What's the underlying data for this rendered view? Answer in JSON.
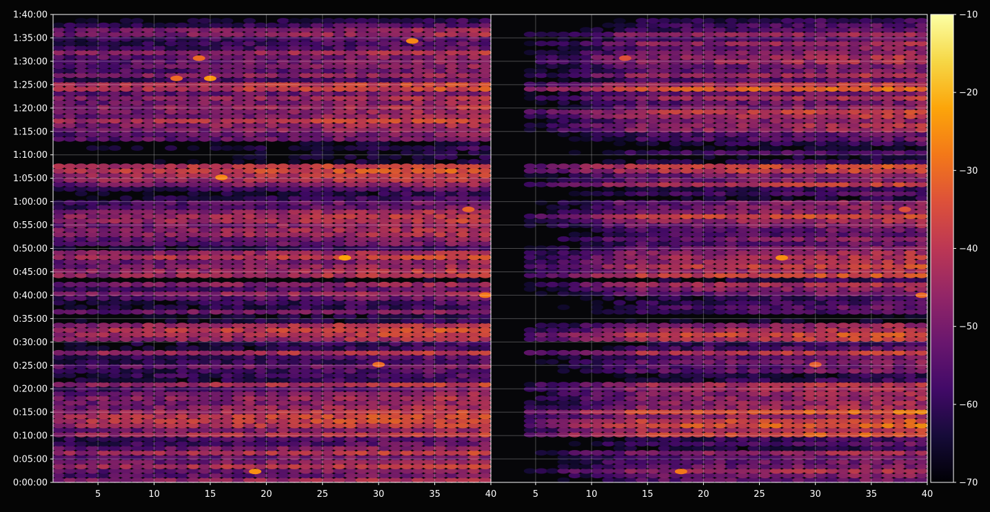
{
  "chart_data": {
    "type": "heatmap",
    "title": "",
    "xlabel": "",
    "ylabel": "",
    "colormap": "inferno",
    "background": "#050505",
    "grid": true,
    "panels": [
      {
        "name": "",
        "x_range": [
          1,
          40
        ],
        "x_ticks": [
          5,
          10,
          15,
          20,
          25,
          30,
          35,
          40
        ],
        "x_tick_labels": [
          "5",
          "10",
          "15",
          "20",
          "25",
          "30",
          "35",
          "40"
        ],
        "data_x_range": [
          1,
          39.5
        ]
      },
      {
        "name": "",
        "x_range": [
          1,
          40
        ],
        "x_ticks": [
          5,
          10,
          15,
          20,
          25,
          30,
          35,
          40
        ],
        "x_tick_labels": [
          "5",
          "10",
          "15",
          "20",
          "25",
          "30",
          "35",
          "40"
        ],
        "data_x_range": [
          5,
          39.5
        ]
      }
    ],
    "y_range_seconds": [
      0,
      6000
    ],
    "y_ticks_seconds": [
      0,
      300,
      600,
      900,
      1200,
      1500,
      1800,
      2100,
      2400,
      2700,
      3000,
      3300,
      3600,
      3900,
      4200,
      4500,
      4800,
      5100,
      5400,
      5700,
      6000
    ],
    "y_tick_labels": [
      "0:00:00",
      "0:05:00",
      "0:10:00",
      "0:15:00",
      "0:20:00",
      "0:25:00",
      "0:30:00",
      "0:35:00",
      "0:40:00",
      "0:45:00",
      "0:50:00",
      "0:55:00",
      "1:00:00",
      "1:05:00",
      "1:10:00",
      "1:15:00",
      "1:20:00",
      "1:25:00",
      "1:30:00",
      "1:35:00",
      "1:40:00"
    ],
    "colorbar": {
      "range": [
        -70,
        -10
      ],
      "ticks": [
        -70,
        -60,
        -50,
        -40,
        -30,
        -20,
        -10
      ],
      "tick_labels": [
        "−70",
        "−60",
        "−50",
        "−40",
        "−30",
        "−20",
        "−10"
      ]
    },
    "bands": [
      {
        "y0": 0,
        "y1": 400,
        "level": -46
      },
      {
        "y0": 400,
        "y1": 560,
        "level": -55
      },
      {
        "y0": 560,
        "y1": 1000,
        "level": -40
      },
      {
        "y0": 1000,
        "y1": 1290,
        "level": -47
      },
      {
        "y0": 1290,
        "y1": 1400,
        "level": -58
      },
      {
        "y0": 1400,
        "y1": 1620,
        "level": -53
      },
      {
        "y0": 1620,
        "y1": 1680,
        "level": -44
      },
      {
        "y0": 1680,
        "y1": 1800,
        "level": -58
      },
      {
        "y0": 1800,
        "y1": 1980,
        "level": -42
      },
      {
        "y0": 1980,
        "y1": 2040,
        "level": -40
      },
      {
        "y0": 2040,
        "y1": 2180,
        "level": -66
      },
      {
        "y0": 2180,
        "y1": 2300,
        "level": -54
      },
      {
        "y0": 2300,
        "y1": 2400,
        "level": -58
      },
      {
        "y0": 2400,
        "y1": 2500,
        "level": -49
      },
      {
        "y0": 2500,
        "y1": 2560,
        "level": -45
      },
      {
        "y0": 2560,
        "y1": 2640,
        "level": -64
      },
      {
        "y0": 2640,
        "y1": 2960,
        "level": -43
      },
      {
        "y0": 2960,
        "y1": 3130,
        "level": -55
      },
      {
        "y0": 3130,
        "y1": 3280,
        "level": -49
      },
      {
        "y0": 3280,
        "y1": 3440,
        "level": -41
      },
      {
        "y0": 3440,
        "y1": 3640,
        "level": -50
      },
      {
        "y0": 3640,
        "y1": 3800,
        "level": -60
      },
      {
        "y0": 3800,
        "y1": 3980,
        "level": -46
      },
      {
        "y0": 3980,
        "y1": 4080,
        "level": -41
      },
      {
        "y0": 4080,
        "y1": 4200,
        "level": -60
      },
      {
        "y0": 4200,
        "y1": 4380,
        "level": -64
      },
      {
        "y0": 4380,
        "y1": 4500,
        "level": -55
      },
      {
        "y0": 4500,
        "y1": 4760,
        "level": -43
      },
      {
        "y0": 4760,
        "y1": 5020,
        "level": -46
      },
      {
        "y0": 5020,
        "y1": 5160,
        "level": -38
      },
      {
        "y0": 5160,
        "y1": 5360,
        "level": -51
      },
      {
        "y0": 5360,
        "y1": 5460,
        "level": -45
      },
      {
        "y0": 5460,
        "y1": 5640,
        "level": -50
      },
      {
        "y0": 5640,
        "y1": 5820,
        "level": -52
      },
      {
        "y0": 5820,
        "y1": 6000,
        "level": -56
      }
    ],
    "hotspots": [
      {
        "panel": 0,
        "x": 15,
        "t": 5180,
        "level": -24
      },
      {
        "panel": 0,
        "x": 12,
        "t": 5180,
        "level": -30
      },
      {
        "panel": 0,
        "x": 27,
        "t": 2880,
        "level": -22
      },
      {
        "panel": 0,
        "x": 19,
        "t": 140,
        "level": -25
      },
      {
        "panel": 0,
        "x": 16,
        "t": 3910,
        "level": -26
      },
      {
        "panel": 0,
        "x": 39.5,
        "t": 2400,
        "level": -28
      },
      {
        "panel": 0,
        "x": 33,
        "t": 5660,
        "level": -26
      },
      {
        "panel": 0,
        "x": 30,
        "t": 1510,
        "level": -30
      },
      {
        "panel": 0,
        "x": 14,
        "t": 5440,
        "level": -30
      },
      {
        "panel": 0,
        "x": 38,
        "t": 3500,
        "level": -31
      },
      {
        "panel": 1,
        "x": 27,
        "t": 2880,
        "level": -25
      },
      {
        "panel": 1,
        "x": 18,
        "t": 140,
        "level": -28
      },
      {
        "panel": 1,
        "x": 39.5,
        "t": 2400,
        "level": -30
      },
      {
        "panel": 1,
        "x": 30,
        "t": 1510,
        "level": -32
      },
      {
        "panel": 1,
        "x": 13,
        "t": 5440,
        "level": -34
      },
      {
        "panel": 1,
        "x": 38,
        "t": 3500,
        "level": -34
      }
    ]
  }
}
